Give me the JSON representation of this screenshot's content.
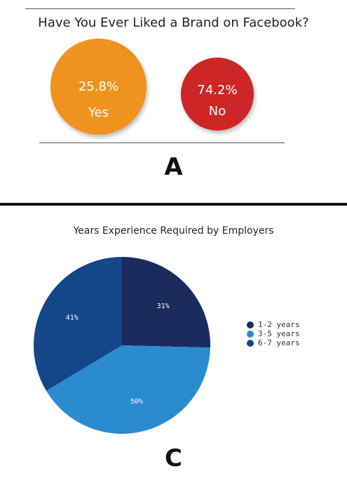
{
  "chart_data": [
    {
      "type": "bubble",
      "title": "Have You Ever Liked a Brand on Facebook?",
      "panel_label": "A",
      "series": [
        {
          "name": "Yes",
          "value": 25.8,
          "value_label": "25.8%",
          "color": "#f0921e"
        },
        {
          "name": "No",
          "value": 74.2,
          "value_label": "74.2%",
          "color": "#cc2626"
        }
      ]
    },
    {
      "type": "pie",
      "title": "Years Experience Required by Employers",
      "panel_label": "C",
      "slices": [
        {
          "name": "1-2 years",
          "value": 31,
          "label": "31%",
          "color": "#1c2b5e"
        },
        {
          "name": "3-5 years",
          "value": 50,
          "label": "50%",
          "color": "#2a8bcf"
        },
        {
          "name": "6-7 years",
          "value": 41,
          "label": "41%",
          "color": "#14468a"
        }
      ],
      "legend": "right"
    }
  ]
}
